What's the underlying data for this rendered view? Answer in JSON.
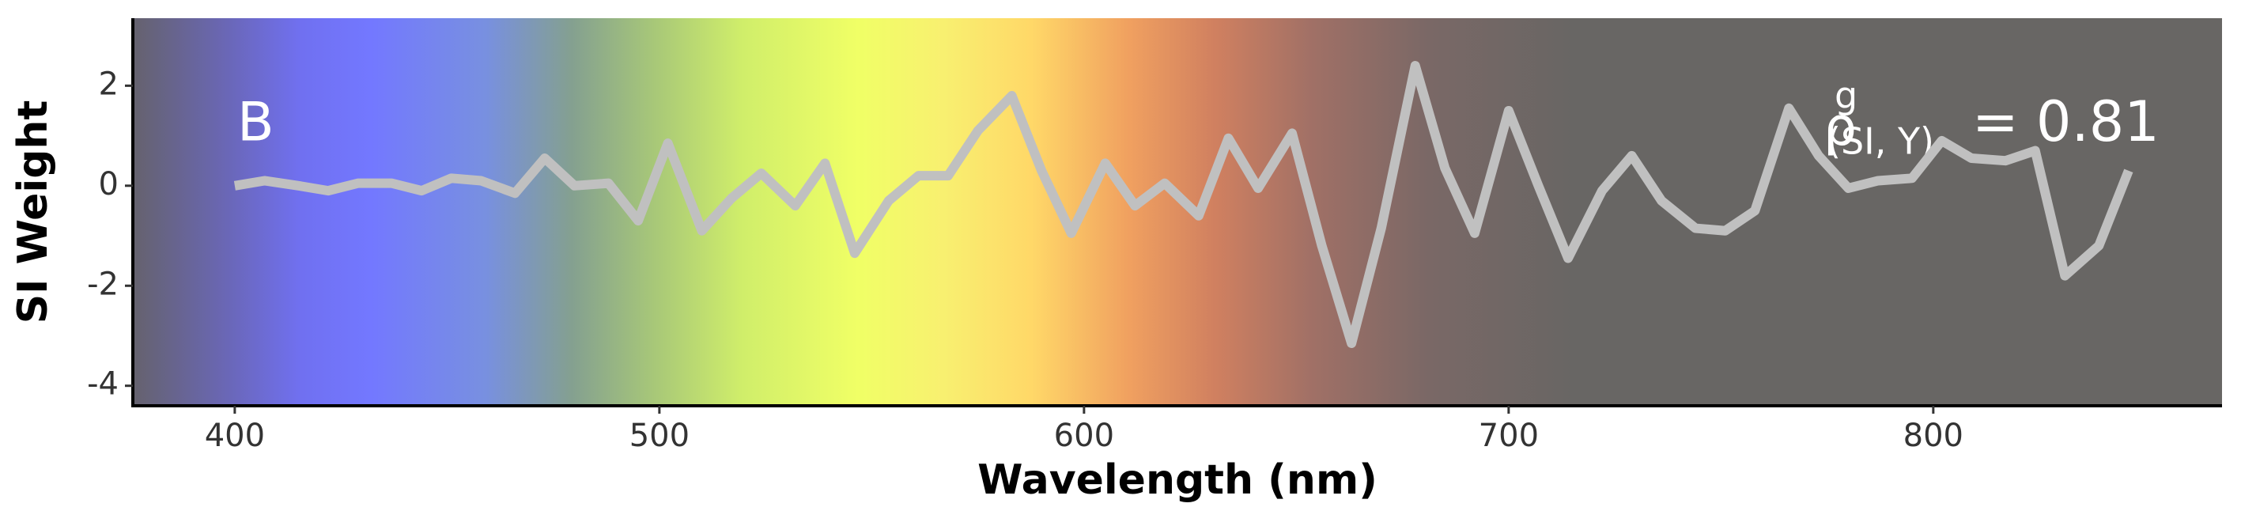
{
  "chart_data": {
    "type": "line",
    "x_label": "Wavelength (nm)",
    "y_label": "SI Weight",
    "panel_label": "B",
    "annotation": {
      "symbol": "ρ",
      "superscript": "g",
      "subscript": "(SI, Y)",
      "text": "= 0.81"
    },
    "x": [
      400,
      407,
      415,
      422,
      429,
      437,
      444,
      451,
      458,
      466,
      473,
      480,
      488,
      495,
      502,
      510,
      517,
      524,
      532,
      539,
      546,
      554,
      561,
      568,
      575,
      583,
      590,
      597,
      605,
      612,
      619,
      627,
      634,
      641,
      649,
      656,
      663,
      670,
      678,
      685,
      692,
      700,
      707,
      714,
      722,
      729,
      736,
      744,
      751,
      758,
      766,
      773,
      780,
      787,
      795,
      802,
      809,
      817,
      824,
      831,
      839,
      846
    ],
    "series": [
      {
        "color": "#c0c0c0",
        "values": [
          0.0,
          0.1,
          0.0,
          -0.1,
          0.05,
          0.05,
          -0.1,
          0.15,
          0.1,
          -0.15,
          0.55,
          0.0,
          0.05,
          -0.7,
          0.85,
          -0.9,
          -0.25,
          0.25,
          -0.4,
          0.45,
          -1.35,
          -0.3,
          0.2,
          0.2,
          1.1,
          1.8,
          0.3,
          -0.95,
          0.45,
          -0.4,
          0.05,
          -0.6,
          0.95,
          -0.05,
          1.05,
          -1.2,
          -3.15,
          -0.85,
          2.4,
          0.35,
          -0.95,
          1.5,
          0.0,
          -1.45,
          -0.1,
          0.6,
          -0.3,
          -0.85,
          -0.9,
          -0.5,
          1.55,
          0.6,
          -0.05,
          0.1,
          0.15,
          0.9,
          0.55,
          0.5,
          0.7,
          -1.8,
          -1.2,
          0.3
        ]
      }
    ],
    "xlim": [
      376,
      868
    ],
    "ylim": [
      -4.4,
      3.35
    ],
    "xticks": [
      400,
      500,
      600,
      700,
      800
    ],
    "yticks": [
      -4,
      -2,
      0,
      2
    ]
  }
}
